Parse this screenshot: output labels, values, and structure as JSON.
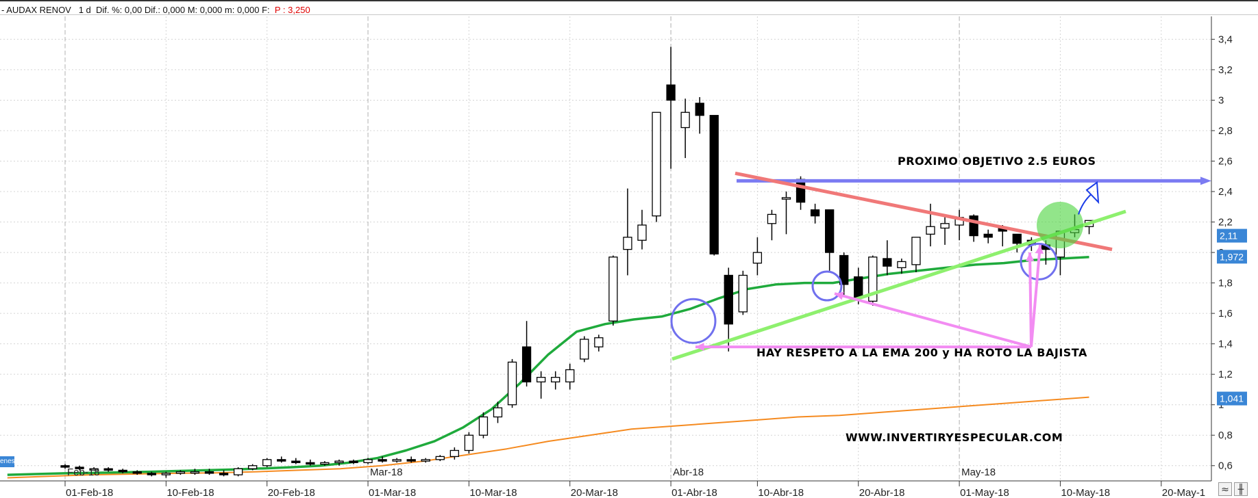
{
  "header": {
    "instrument": "- AUDAX RENOV",
    "period": "1 d",
    "stats": "Dif. %: 0,00  Dif.: 0,000  M: 0,000  m: 0,000  F:",
    "price": "P : 3,250"
  },
  "legend_tag": "enes",
  "controls": {
    "zoom_icon": "double-chevron-icon",
    "chart_icon": "candlestick-icon"
  },
  "chart_data": {
    "type": "candlestick",
    "ylim": [
      0.5,
      3.55
    ],
    "y_ticks": [
      "3,4",
      "3,2",
      "3",
      "2,8",
      "2,6",
      "2,4",
      "2,2",
      "2",
      "1,8",
      "1,6",
      "1,4",
      "1,2",
      "1",
      "0,8",
      "0,6"
    ],
    "y_tick_values": [
      3.4,
      3.2,
      3.0,
      2.8,
      2.6,
      2.4,
      2.2,
      2.0,
      1.8,
      1.6,
      1.4,
      1.2,
      1.0,
      0.8,
      0.6
    ],
    "x_date_labels": [
      {
        "label": "01-Feb-18",
        "index": 0
      },
      {
        "label": "10-Feb-18",
        "index": 7
      },
      {
        "label": "20-Feb-18",
        "index": 14
      },
      {
        "label": "01-Mar-18",
        "index": 21
      },
      {
        "label": "10-Mar-18",
        "index": 28
      },
      {
        "label": "20-Mar-18",
        "index": 35
      },
      {
        "label": "01-Abr-18",
        "index": 42
      },
      {
        "label": "10-Abr-18",
        "index": 48
      },
      {
        "label": "20-Abr-18",
        "index": 55
      },
      {
        "label": "01-May-18",
        "index": 62
      },
      {
        "label": "10-May-18",
        "index": 69
      },
      {
        "label": "20-May-1",
        "index": 76
      }
    ],
    "x_month_labels": [
      {
        "label": "Feb-18",
        "index": 0
      },
      {
        "label": "Mar-18",
        "index": 21
      },
      {
        "label": "Abr-18",
        "index": 42
      },
      {
        "label": "May-18",
        "index": 62
      }
    ],
    "candles": [
      [
        0.6,
        0.61,
        0.58,
        0.59
      ],
      [
        0.59,
        0.6,
        0.57,
        0.58
      ],
      [
        0.58,
        0.59,
        0.57,
        0.58
      ],
      [
        0.58,
        0.59,
        0.56,
        0.57
      ],
      [
        0.57,
        0.58,
        0.55,
        0.56
      ],
      [
        0.56,
        0.57,
        0.54,
        0.55
      ],
      [
        0.55,
        0.56,
        0.53,
        0.54
      ],
      [
        0.54,
        0.56,
        0.52,
        0.55
      ],
      [
        0.55,
        0.57,
        0.54,
        0.56
      ],
      [
        0.56,
        0.58,
        0.54,
        0.56
      ],
      [
        0.56,
        0.58,
        0.54,
        0.55
      ],
      [
        0.55,
        0.57,
        0.53,
        0.54
      ],
      [
        0.54,
        0.59,
        0.53,
        0.58
      ],
      [
        0.58,
        0.61,
        0.57,
        0.6
      ],
      [
        0.6,
        0.65,
        0.59,
        0.64
      ],
      [
        0.64,
        0.66,
        0.62,
        0.63
      ],
      [
        0.63,
        0.65,
        0.61,
        0.62
      ],
      [
        0.62,
        0.64,
        0.6,
        0.61
      ],
      [
        0.61,
        0.63,
        0.6,
        0.62
      ],
      [
        0.62,
        0.64,
        0.6,
        0.63
      ],
      [
        0.63,
        0.64,
        0.61,
        0.62
      ],
      [
        0.62,
        0.65,
        0.61,
        0.64
      ],
      [
        0.64,
        0.66,
        0.62,
        0.63
      ],
      [
        0.63,
        0.65,
        0.62,
        0.64
      ],
      [
        0.64,
        0.66,
        0.62,
        0.63
      ],
      [
        0.63,
        0.65,
        0.62,
        0.64
      ],
      [
        0.64,
        0.67,
        0.63,
        0.66
      ],
      [
        0.66,
        0.72,
        0.64,
        0.7
      ],
      [
        0.7,
        0.82,
        0.68,
        0.8
      ],
      [
        0.8,
        0.95,
        0.78,
        0.92
      ],
      [
        0.92,
        1.02,
        0.88,
        0.98
      ],
      [
        1.0,
        1.3,
        0.98,
        1.28
      ],
      [
        1.38,
        1.55,
        1.12,
        1.15
      ],
      [
        1.15,
        1.22,
        1.04,
        1.18
      ],
      [
        1.15,
        1.22,
        1.1,
        1.18
      ],
      [
        1.15,
        1.27,
        1.1,
        1.23
      ],
      [
        1.3,
        1.45,
        1.28,
        1.43
      ],
      [
        1.38,
        1.46,
        1.35,
        1.44
      ],
      [
        1.55,
        1.98,
        1.52,
        1.97
      ],
      [
        2.02,
        2.42,
        1.85,
        2.1
      ],
      [
        2.08,
        2.28,
        2.02,
        2.18
      ],
      [
        2.24,
        2.92,
        2.2,
        2.92
      ],
      [
        3.1,
        3.35,
        2.55,
        3.0
      ],
      [
        2.82,
        3.01,
        2.62,
        2.92
      ],
      [
        2.98,
        3.02,
        2.78,
        2.9
      ],
      [
        2.9,
        2.9,
        1.98,
        1.99
      ],
      [
        1.85,
        1.9,
        1.35,
        1.53
      ],
      [
        1.61,
        1.88,
        1.59,
        1.85
      ],
      [
        1.93,
        2.1,
        1.85,
        2.0
      ],
      [
        2.19,
        2.28,
        2.08,
        2.25
      ],
      [
        2.35,
        2.4,
        2.12,
        2.36
      ],
      [
        2.48,
        2.5,
        2.28,
        2.33
      ],
      [
        2.28,
        2.32,
        2.19,
        2.24
      ],
      [
        2.28,
        2.28,
        1.88,
        2.0
      ],
      [
        1.98,
        2.0,
        1.72,
        1.79
      ],
      [
        1.84,
        1.9,
        1.66,
        1.7
      ],
      [
        1.68,
        1.98,
        1.65,
        1.97
      ],
      [
        1.96,
        2.08,
        1.85,
        1.91
      ],
      [
        1.9,
        1.96,
        1.86,
        1.94
      ],
      [
        1.92,
        2.1,
        1.87,
        2.1
      ],
      [
        2.12,
        2.32,
        2.04,
        2.17
      ],
      [
        2.16,
        2.25,
        2.05,
        2.19
      ],
      [
        2.18,
        2.28,
        2.08,
        2.23
      ],
      [
        2.24,
        2.25,
        2.07,
        2.11
      ],
      [
        2.12,
        2.15,
        2.06,
        2.1
      ],
      [
        2.16,
        2.18,
        2.04,
        2.14
      ],
      [
        2.12,
        2.12,
        2.0,
        2.06
      ],
      [
        2.08,
        2.1,
        2.01,
        2.05
      ],
      [
        2.05,
        2.08,
        1.92,
        2.02
      ],
      [
        1.97,
        2.14,
        1.85,
        2.14
      ],
      [
        2.13,
        2.25,
        2.1,
        2.15
      ],
      [
        2.17,
        2.2,
        2.12,
        2.21
      ]
    ],
    "ema_fast": [
      0.54,
      0.545,
      0.55,
      0.553,
      0.556,
      0.56,
      0.565,
      0.57,
      0.575,
      0.582,
      0.59,
      0.6,
      0.62,
      0.65,
      0.7,
      0.76,
      0.85,
      0.97,
      1.14,
      1.33,
      1.48,
      1.53,
      1.56,
      1.58,
      1.63,
      1.7,
      1.76,
      1.79,
      1.8,
      1.8,
      1.83,
      1.86,
      1.88,
      1.9,
      1.92,
      1.93,
      1.95,
      1.96,
      1.97
    ],
    "ema_200": [
      0.52,
      0.53,
      0.54,
      0.545,
      0.55,
      0.553,
      0.56,
      0.57,
      0.58,
      0.6,
      0.63,
      0.67,
      0.71,
      0.76,
      0.8,
      0.84,
      0.86,
      0.88,
      0.9,
      0.92,
      0.93,
      0.95,
      0.97,
      0.99,
      1.01,
      1.03,
      1.05
    ],
    "price_tags": [
      {
        "label": "2,11",
        "value": 2.11
      },
      {
        "label": "1,972",
        "value": 1.972
      },
      {
        "label": "1,041",
        "value": 1.041
      }
    ],
    "annotations": {
      "target": "PROXIMO OBJETIVO 2.5 EUROS",
      "comment": "HAY RESPETO A LA EMA 200 y HA ROTO LA BAJISTA",
      "website": "WWW.INVERTIRYESPECULAR.COM",
      "target_level": 2.47
    }
  },
  "colors": {
    "bear": "#000000",
    "bull": "#ffffff",
    "ema_fast": "#1faa3c",
    "ema_200": "#f58a1f",
    "resistance": "#f07878",
    "support": "#8ef06e",
    "target_line": "#7b7bf2",
    "circles": "#7070ee",
    "arrows": "#f28cf2",
    "tag": "#3a86d6"
  }
}
